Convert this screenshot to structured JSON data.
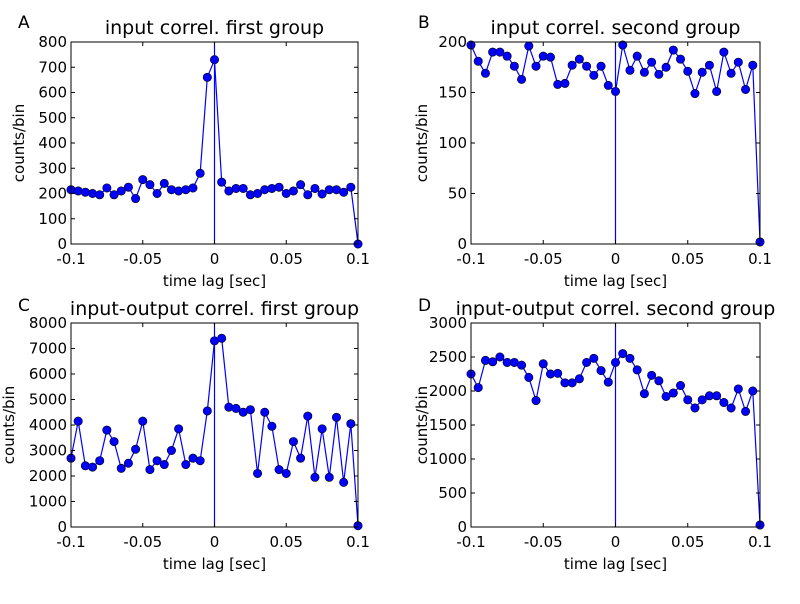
{
  "colors": {
    "series": "#0000ff",
    "axis": "#000000",
    "background": "#ffffff"
  },
  "chart_data": [
    {
      "type": "line",
      "panel_label": "A",
      "title": "input correl. first group",
      "xlabel": "time lag [sec]",
      "ylabel": "counts/bin",
      "xlim": [
        -0.1,
        0.1
      ],
      "ylim": [
        0,
        800
      ],
      "xticks": [
        -0.1,
        -0.05,
        0,
        0.05,
        0.1
      ],
      "xtick_labels": [
        "-0.1",
        "-0.05",
        "0",
        "0.05",
        "0.1"
      ],
      "yticks": [
        0,
        100,
        200,
        300,
        400,
        500,
        600,
        700,
        800
      ],
      "ytick_labels": [
        "0",
        "100",
        "200",
        "300",
        "400",
        "500",
        "600",
        "700",
        "800"
      ],
      "vline_x": 0,
      "x": [
        -0.1,
        -0.095,
        -0.09,
        -0.085,
        -0.08,
        -0.075,
        -0.07,
        -0.065,
        -0.06,
        -0.055,
        -0.05,
        -0.045,
        -0.04,
        -0.035,
        -0.03,
        -0.025,
        -0.02,
        -0.015,
        -0.01,
        -0.005,
        0,
        0.005,
        0.01,
        0.015,
        0.02,
        0.025,
        0.03,
        0.035,
        0.04,
        0.045,
        0.05,
        0.055,
        0.06,
        0.065,
        0.07,
        0.075,
        0.08,
        0.085,
        0.09,
        0.095,
        0.1
      ],
      "values": [
        215,
        210,
        205,
        200,
        195,
        222,
        195,
        210,
        225,
        180,
        255,
        235,
        200,
        240,
        215,
        210,
        215,
        222,
        280,
        660,
        730,
        245,
        210,
        220,
        220,
        195,
        200,
        215,
        220,
        225,
        200,
        210,
        235,
        195,
        220,
        198,
        215,
        215,
        205,
        225,
        0
      ]
    },
    {
      "type": "line",
      "panel_label": "B",
      "title": "input correl. second group",
      "xlabel": "time lag [sec]",
      "ylabel": "counts/bin",
      "xlim": [
        -0.1,
        0.1
      ],
      "ylim": [
        0,
        200
      ],
      "xticks": [
        -0.1,
        -0.05,
        0,
        0.05,
        0.1
      ],
      "xtick_labels": [
        "-0.1",
        "-0.05",
        "0",
        "0.05",
        "0.1"
      ],
      "yticks": [
        0,
        50,
        100,
        150,
        200
      ],
      "ytick_labels": [
        "0",
        "50",
        "100",
        "150",
        "200"
      ],
      "vline_x": 0,
      "x": [
        -0.1,
        -0.095,
        -0.09,
        -0.085,
        -0.08,
        -0.075,
        -0.07,
        -0.065,
        -0.06,
        -0.055,
        -0.05,
        -0.045,
        -0.04,
        -0.035,
        -0.03,
        -0.025,
        -0.02,
        -0.015,
        -0.01,
        -0.005,
        0,
        0.005,
        0.01,
        0.015,
        0.02,
        0.025,
        0.03,
        0.035,
        0.04,
        0.045,
        0.05,
        0.055,
        0.06,
        0.065,
        0.07,
        0.075,
        0.08,
        0.085,
        0.09,
        0.095,
        0.1
      ],
      "values": [
        197,
        181,
        169,
        190,
        190,
        186,
        176,
        163,
        196,
        176,
        186,
        185,
        158,
        159,
        177,
        183,
        176,
        167,
        176,
        157,
        151,
        197,
        172,
        186,
        170,
        180,
        168,
        175,
        192,
        183,
        171,
        149,
        170,
        177,
        151,
        190,
        169,
        180,
        153,
        177,
        2
      ]
    },
    {
      "type": "line",
      "panel_label": "C",
      "title": "input-output correl. first group",
      "xlabel": "time lag [sec]",
      "ylabel": "counts/bin",
      "xlim": [
        -0.1,
        0.1
      ],
      "ylim": [
        0,
        8000
      ],
      "xticks": [
        -0.1,
        -0.05,
        0,
        0.05,
        0.1
      ],
      "xtick_labels": [
        "-0.1",
        "-0.05",
        "0",
        "0.05",
        "0.1"
      ],
      "yticks": [
        0,
        1000,
        2000,
        3000,
        4000,
        5000,
        6000,
        7000,
        8000
      ],
      "ytick_labels": [
        "0",
        "1000",
        "2000",
        "3000",
        "4000",
        "5000",
        "6000",
        "7000",
        "8000"
      ],
      "vline_x": 0,
      "x": [
        -0.1,
        -0.095,
        -0.09,
        -0.085,
        -0.08,
        -0.075,
        -0.07,
        -0.065,
        -0.06,
        -0.055,
        -0.05,
        -0.045,
        -0.04,
        -0.035,
        -0.03,
        -0.025,
        -0.02,
        -0.015,
        -0.01,
        -0.005,
        0,
        0.005,
        0.01,
        0.015,
        0.02,
        0.025,
        0.03,
        0.035,
        0.04,
        0.045,
        0.05,
        0.055,
        0.06,
        0.065,
        0.07,
        0.075,
        0.08,
        0.085,
        0.09,
        0.095,
        0.1
      ],
      "values": [
        2700,
        4150,
        2400,
        2350,
        2600,
        3800,
        3350,
        2300,
        2500,
        3050,
        4150,
        2250,
        2600,
        2450,
        3000,
        3850,
        2450,
        2700,
        2600,
        4550,
        7300,
        7400,
        4700,
        4650,
        4500,
        4600,
        2100,
        4500,
        3950,
        2250,
        2100,
        3350,
        2700,
        4350,
        1950,
        3850,
        1950,
        4300,
        1750,
        4050,
        50
      ]
    },
    {
      "type": "line",
      "panel_label": "D",
      "title": "input-output correl. second group",
      "xlabel": "time lag [sec]",
      "ylabel": "counts/bin",
      "xlim": [
        -0.1,
        0.1
      ],
      "ylim": [
        0,
        3000
      ],
      "xticks": [
        -0.1,
        -0.05,
        0,
        0.05,
        0.1
      ],
      "xtick_labels": [
        "-0.1",
        "-0.05",
        "0",
        "0.05",
        "0.1"
      ],
      "yticks": [
        0,
        500,
        1000,
        1500,
        2000,
        2500,
        3000
      ],
      "ytick_labels": [
        "0",
        "500",
        "1000",
        "1500",
        "2000",
        "2500",
        "3000"
      ],
      "vline_x": 0,
      "x": [
        -0.1,
        -0.095,
        -0.09,
        -0.085,
        -0.08,
        -0.075,
        -0.07,
        -0.065,
        -0.06,
        -0.055,
        -0.05,
        -0.045,
        -0.04,
        -0.035,
        -0.03,
        -0.025,
        -0.02,
        -0.015,
        -0.01,
        -0.005,
        0,
        0.005,
        0.01,
        0.015,
        0.02,
        0.025,
        0.03,
        0.035,
        0.04,
        0.045,
        0.05,
        0.055,
        0.06,
        0.065,
        0.07,
        0.075,
        0.08,
        0.085,
        0.09,
        0.095,
        0.1
      ],
      "values": [
        2250,
        2050,
        2450,
        2430,
        2500,
        2420,
        2420,
        2380,
        2200,
        1860,
        2400,
        2250,
        2260,
        2120,
        2120,
        2180,
        2420,
        2480,
        2300,
        2130,
        2420,
        2550,
        2480,
        2310,
        1960,
        2230,
        2150,
        1920,
        1970,
        2080,
        1870,
        1750,
        1870,
        1930,
        1930,
        1830,
        1750,
        2030,
        1700,
        2000,
        30
      ]
    }
  ]
}
